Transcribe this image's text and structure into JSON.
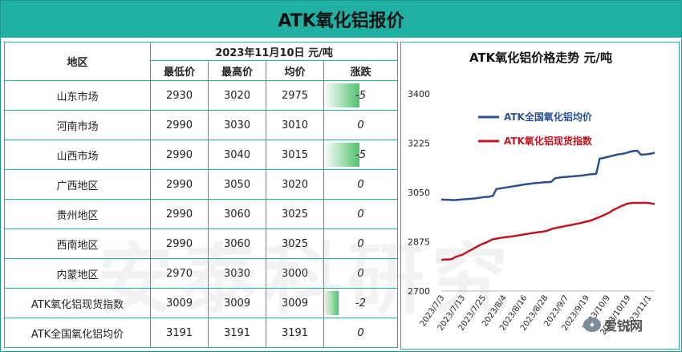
{
  "title": "ATK氧化铝报价",
  "table": {
    "region_header": "地区",
    "date_header": "2023年11月10日  元/吨",
    "columns": [
      "最低价",
      "最高价",
      "均价",
      "涨跌"
    ],
    "rows": [
      {
        "region": "山东市场",
        "low": "2930",
        "high": "3020",
        "avg": "2975",
        "change": "-5",
        "change_value": -5
      },
      {
        "region": "河南市场",
        "low": "2990",
        "high": "3030",
        "avg": "3010",
        "change": "0",
        "change_value": 0
      },
      {
        "region": "山西市场",
        "low": "2990",
        "high": "3040",
        "avg": "3015",
        "change": "-5",
        "change_value": -5
      },
      {
        "region": "广西地区",
        "low": "2990",
        "high": "3050",
        "avg": "3020",
        "change": "0",
        "change_value": 0
      },
      {
        "region": "贵州地区",
        "low": "2990",
        "high": "3060",
        "avg": "3025",
        "change": "0",
        "change_value": 0
      },
      {
        "region": "西南地区",
        "low": "2990",
        "high": "3060",
        "avg": "3025",
        "change": "0",
        "change_value": 0
      },
      {
        "region": "内蒙地区",
        "low": "2970",
        "high": "3030",
        "avg": "3000",
        "change": "0",
        "change_value": 0
      },
      {
        "region": "ATK氧化铝现货指数",
        "low": "3009",
        "high": "3009",
        "avg": "3009",
        "change": "-2",
        "change_value": -2
      },
      {
        "region": "ATK全国氧化铝均价",
        "low": "3191",
        "high": "3191",
        "avg": "3191",
        "change": "0",
        "change_value": 0
      }
    ],
    "bar_color": "#4fc16b"
  },
  "chart_data": {
    "type": "line",
    "title": "ATK氧化铝价格走势  元/吨",
    "xlabel": "",
    "ylabel": "",
    "ylim": [
      2700,
      3400
    ],
    "yticks": [
      2700,
      2875,
      3050,
      3225,
      3400
    ],
    "x_tick_labels": [
      "2023/7/3",
      "2023/7/13",
      "2023/7/25",
      "2023/8/4",
      "2023/8/16",
      "2023/8/28",
      "2023/9/7",
      "2023/9/19",
      "2023/10/9",
      "2023/10/19",
      "2023/11/1"
    ],
    "grid": false,
    "legend_position": "top",
    "series": [
      {
        "name": "ATK全国氧化铝均价",
        "color": "#2b4f8f",
        "values": [
          3025,
          3024,
          3024,
          3023,
          3023,
          3024,
          3025,
          3026,
          3027,
          3028,
          3029,
          3031,
          3033,
          3034,
          3035,
          3038,
          3062,
          3064,
          3066,
          3068,
          3070,
          3072,
          3074,
          3076,
          3078,
          3080,
          3081,
          3083,
          3084,
          3085,
          3086,
          3086,
          3088,
          3100,
          3102,
          3104,
          3105,
          3106,
          3107,
          3108,
          3109,
          3110,
          3112,
          3114,
          3115,
          3116,
          3170,
          3172,
          3175,
          3178,
          3181,
          3184,
          3186,
          3188,
          3191,
          3195,
          3197,
          3198,
          3184,
          3185,
          3186,
          3188,
          3191
        ]
      },
      {
        "name": "ATK氧化铝现货指数",
        "color": "#c0141e",
        "values": [
          2810,
          2812,
          2812,
          2813,
          2820,
          2825,
          2828,
          2835,
          2842,
          2848,
          2855,
          2862,
          2868,
          2872,
          2878,
          2884,
          2886,
          2888,
          2890,
          2892,
          2893,
          2895,
          2897,
          2899,
          2901,
          2903,
          2905,
          2907,
          2909,
          2910,
          2912,
          2915,
          2920,
          2923,
          2926,
          2928,
          2931,
          2933,
          2935,
          2938,
          2940,
          2943,
          2946,
          2949,
          2953,
          2958,
          2963,
          2968,
          2974,
          2980,
          2988,
          2994,
          3000,
          3005,
          3010,
          3012,
          3013,
          3013,
          3013,
          3013,
          3013,
          3011,
          3009
        ]
      }
    ]
  },
  "watermark": "安泰科研究",
  "logo": {
    "text": "爱锐网",
    "icon": "wechat-icon"
  }
}
